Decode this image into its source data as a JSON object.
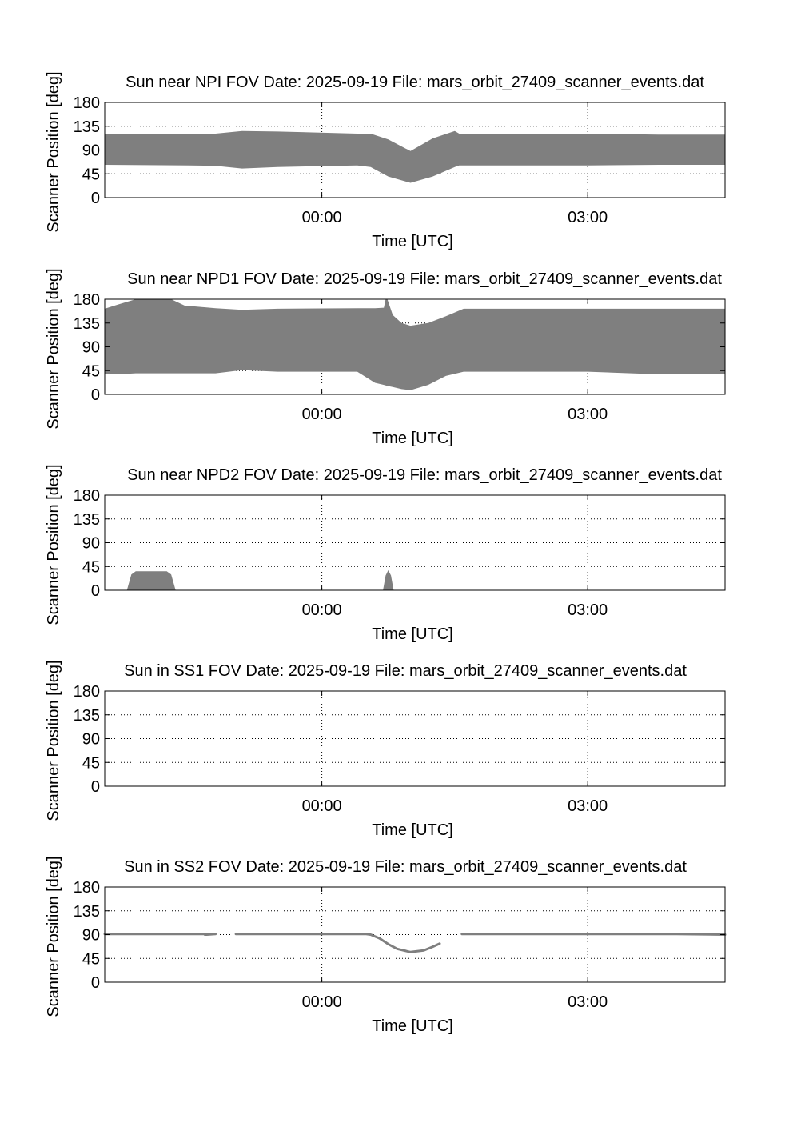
{
  "page": {
    "background": "#ffffff"
  },
  "style": {
    "fill_color": "#7f7f7f",
    "axis_color": "#000000",
    "grid_color": "#000000"
  },
  "chart_data": [
    {
      "type": "area",
      "title": "Sun near NPI FOV   Date: 2025-09-19   File: mars_orbit_27409_scanner_events.dat",
      "xlabel": "Time [UTC]",
      "ylabel": "Scanner Position [deg]",
      "xlim": [
        -2.45,
        4.55
      ],
      "ylim": [
        0,
        180
      ],
      "xticks": [
        {
          "value": 0,
          "label": "00:00"
        },
        {
          "value": 3,
          "label": "03:00"
        }
      ],
      "yticks": [
        0,
        45,
        90,
        135,
        180
      ],
      "grid": true,
      "series": [
        {
          "segments": [
            {
              "x": [
                -2.45,
                -1.5,
                -1.2,
                -0.9,
                -0.5,
                0.4,
                0.55,
                0.75,
                1.0,
                1.25,
                1.5,
                1.55,
                1.65,
                2.0,
                3.0,
                3.8,
                4.55
              ],
              "y_low": [
                62,
                61,
                60,
                55,
                58,
                61,
                58,
                40,
                28,
                40,
                58,
                61,
                61,
                61,
                61,
                62,
                62
              ],
              "y_high": [
                120,
                120,
                121,
                126,
                125,
                121,
                121,
                110,
                88,
                112,
                126,
                121,
                121,
                121,
                121,
                119,
                119
              ]
            }
          ]
        }
      ]
    },
    {
      "type": "area",
      "title": "Sun near NPD1 FOV   Date: 2025-09-19   File: mars_orbit_27409_scanner_events.dat",
      "xlabel": "Time [UTC]",
      "ylabel": "Scanner Position [deg]",
      "xlim": [
        -2.45,
        4.55
      ],
      "ylim": [
        0,
        180
      ],
      "xticks": [
        {
          "value": 0,
          "label": "00:00"
        },
        {
          "value": 3,
          "label": "03:00"
        }
      ],
      "yticks": [
        0,
        45,
        90,
        135,
        180
      ],
      "grid": true,
      "series": [
        {
          "segments": [
            {
              "x": [
                -2.45,
                -2.3,
                -2.1,
                -1.7,
                -1.55,
                -1.2,
                -0.9,
                -0.5,
                0.4,
                0.6,
                0.7,
                0.72,
                0.74,
                0.8,
                0.9,
                1.0,
                1.2,
                1.4,
                1.6,
                2.0,
                3.0,
                3.8,
                4.55
              ],
              "y_low": [
                38,
                38,
                40,
                40,
                40,
                40,
                46,
                43,
                43,
                22,
                18,
                17,
                16,
                14,
                10,
                8,
                18,
                35,
                43,
                43,
                43,
                38,
                38
              ],
              "y_high": [
                162,
                170,
                180,
                180,
                168,
                163,
                160,
                162,
                163,
                163,
                164,
                180,
                180,
                150,
                135,
                130,
                135,
                148,
                162,
                162,
                162,
                162,
                162
              ]
            }
          ]
        }
      ]
    },
    {
      "type": "area",
      "title": "Sun near NPD2 FOV   Date: 2025-09-19   File: mars_orbit_27409_scanner_events.dat",
      "xlabel": "Time [UTC]",
      "ylabel": "Scanner Position [deg]",
      "xlim": [
        -2.45,
        4.55
      ],
      "ylim": [
        0,
        180
      ],
      "xticks": [
        {
          "value": 0,
          "label": "00:00"
        },
        {
          "value": 3,
          "label": "03:00"
        }
      ],
      "yticks": [
        0,
        45,
        90,
        135,
        180
      ],
      "grid": true,
      "series": [
        {
          "segments": [
            {
              "x": [
                -2.2,
                -2.15,
                -2.1,
                -1.75,
                -1.7,
                -1.65
              ],
              "y_low": [
                0,
                0,
                0,
                0,
                0,
                0
              ],
              "y_high": [
                0,
                30,
                36,
                36,
                30,
                0
              ]
            },
            {
              "x": [
                0.69,
                0.72,
                0.75,
                0.78,
                0.81
              ],
              "y_low": [
                0,
                0,
                0,
                0,
                0
              ],
              "y_high": [
                0,
                28,
                38,
                28,
                0
              ]
            }
          ]
        }
      ]
    },
    {
      "type": "area",
      "title": "Sun in SS1 FOV   Date: 2025-09-19   File: mars_orbit_27409_scanner_events.dat",
      "xlabel": "Time [UTC]",
      "ylabel": "Scanner Position [deg]",
      "xlim": [
        -2.45,
        4.55
      ],
      "ylim": [
        0,
        180
      ],
      "xticks": [
        {
          "value": 0,
          "label": "00:00"
        },
        {
          "value": 3,
          "label": "03:00"
        }
      ],
      "yticks": [
        0,
        45,
        90,
        135,
        180
      ],
      "grid": true,
      "series": []
    },
    {
      "type": "line",
      "title": "Sun in SS2 FOV   Date: 2025-09-19   File: mars_orbit_27409_scanner_events.dat",
      "xlabel": "Time [UTC]",
      "ylabel": "Scanner Position [deg]",
      "xlim": [
        -2.45,
        4.55
      ],
      "ylim": [
        0,
        180
      ],
      "xticks": [
        {
          "value": 0,
          "label": "00:00"
        },
        {
          "value": 3,
          "label": "03:00"
        }
      ],
      "yticks": [
        0,
        45,
        90,
        135,
        180
      ],
      "grid": true,
      "series": [
        {
          "segments": [
            {
              "x": [
                -2.45,
                -1.2,
                -1.3,
                -1.32
              ],
              "y": [
                91,
                91,
                90,
                90
              ]
            },
            {
              "x": [
                -0.97,
                0.0,
                0.5,
                0.55,
                0.65,
                0.75,
                0.85,
                1.0,
                1.15,
                1.25,
                1.33
              ],
              "y": [
                91,
                91,
                91,
                90,
                83,
                72,
                63,
                57,
                60,
                67,
                73
              ]
            },
            {
              "x": [
                1.58,
                2.0,
                3.0,
                4.0,
                4.55
              ],
              "y": [
                91,
                91,
                91,
                91,
                90
              ]
            }
          ]
        }
      ]
    }
  ]
}
